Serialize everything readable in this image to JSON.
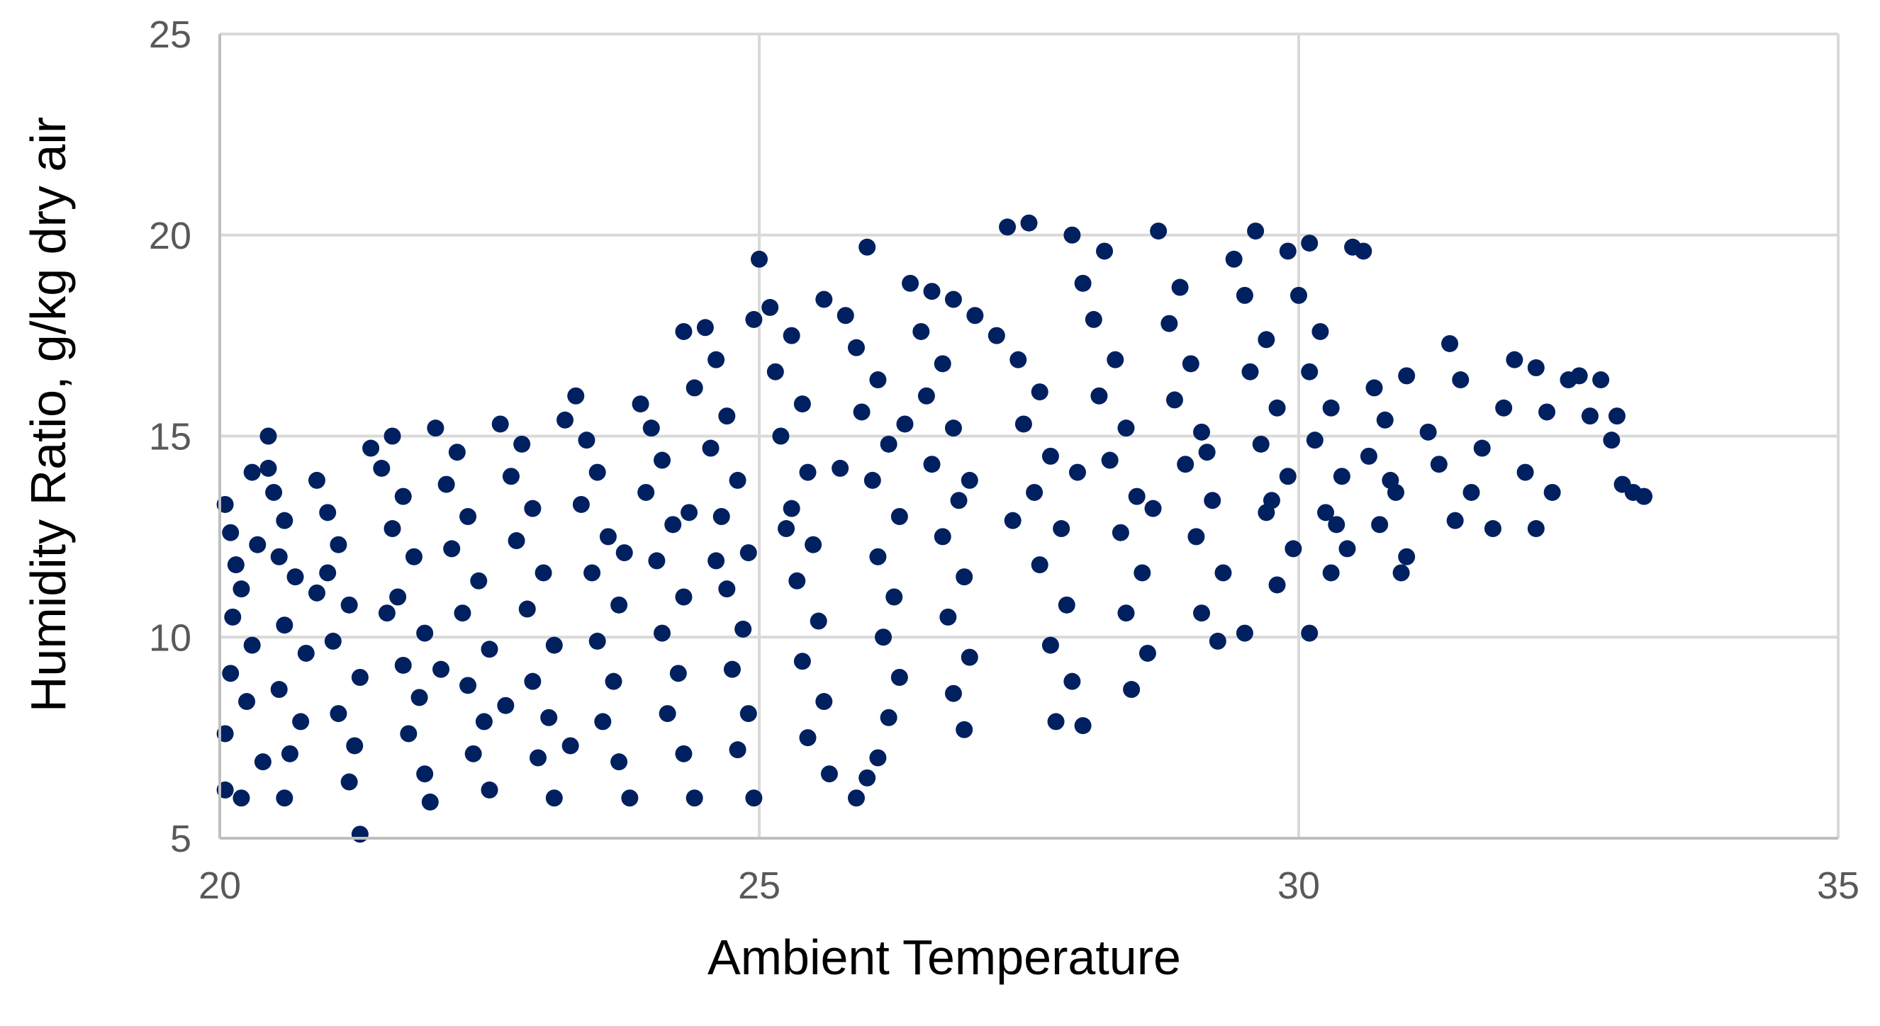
{
  "chart_data": {
    "type": "scatter",
    "title": "",
    "xlabel": "Ambient Temperature",
    "ylabel": "Humidity Ratio, g/kg dry air",
    "xlim": [
      20,
      35
    ],
    "ylim": [
      5,
      25
    ],
    "x_ticks": [
      20,
      25,
      30,
      35
    ],
    "y_ticks": [
      5,
      10,
      15,
      20,
      25
    ],
    "x_tick_labels": [
      "20",
      "25",
      "30",
      "35"
    ],
    "y_tick_labels": [
      "5",
      "10",
      "15",
      "20",
      "25"
    ],
    "grid": true,
    "legend": "none",
    "marker_color": "#002060",
    "gridline_color": "#d9d9d9",
    "series": [
      {
        "points": [
          [
            20.05,
            13.3
          ],
          [
            20.1,
            12.6
          ],
          [
            20.15,
            11.8
          ],
          [
            20.2,
            11.2
          ],
          [
            20.12,
            10.5
          ],
          [
            20.3,
            9.8
          ],
          [
            20.1,
            9.1
          ],
          [
            20.25,
            8.4
          ],
          [
            20.05,
            7.6
          ],
          [
            20.4,
            6.9
          ],
          [
            20.05,
            6.2
          ],
          [
            20.2,
            6.0
          ],
          [
            20.3,
            14.1
          ],
          [
            20.45,
            14.2
          ],
          [
            20.5,
            13.6
          ],
          [
            20.6,
            12.9
          ],
          [
            20.55,
            12.0
          ],
          [
            20.7,
            11.5
          ],
          [
            20.6,
            10.3
          ],
          [
            20.8,
            9.6
          ],
          [
            20.55,
            8.7
          ],
          [
            20.75,
            7.9
          ],
          [
            20.65,
            7.1
          ],
          [
            20.6,
            6.0
          ],
          [
            20.45,
            15.0
          ],
          [
            20.9,
            13.9
          ],
          [
            21.0,
            13.1
          ],
          [
            21.1,
            12.3
          ],
          [
            21.0,
            11.6
          ],
          [
            21.2,
            10.8
          ],
          [
            21.05,
            9.9
          ],
          [
            21.3,
            9.0
          ],
          [
            21.1,
            8.1
          ],
          [
            21.25,
            7.3
          ],
          [
            21.2,
            6.4
          ],
          [
            21.3,
            5.1
          ],
          [
            21.4,
            14.7
          ],
          [
            21.6,
            15.0
          ],
          [
            21.5,
            14.2
          ],
          [
            21.7,
            13.5
          ],
          [
            21.6,
            12.7
          ],
          [
            21.8,
            12.0
          ],
          [
            21.65,
            11.0
          ],
          [
            21.9,
            10.1
          ],
          [
            21.7,
            9.3
          ],
          [
            21.85,
            8.5
          ],
          [
            21.75,
            7.6
          ],
          [
            21.9,
            6.6
          ],
          [
            21.95,
            5.9
          ],
          [
            22.0,
            15.2
          ],
          [
            22.2,
            14.6
          ],
          [
            22.1,
            13.8
          ],
          [
            22.3,
            13.0
          ],
          [
            22.15,
            12.2
          ],
          [
            22.4,
            11.4
          ],
          [
            22.25,
            10.6
          ],
          [
            22.5,
            9.7
          ],
          [
            22.3,
            8.8
          ],
          [
            22.45,
            7.9
          ],
          [
            22.35,
            7.1
          ],
          [
            22.5,
            6.2
          ],
          [
            22.6,
            15.3
          ],
          [
            22.8,
            14.8
          ],
          [
            22.7,
            14.0
          ],
          [
            22.9,
            13.2
          ],
          [
            22.75,
            12.4
          ],
          [
            23.0,
            11.6
          ],
          [
            22.85,
            10.7
          ],
          [
            23.1,
            9.8
          ],
          [
            22.9,
            8.9
          ],
          [
            23.05,
            8.0
          ],
          [
            22.95,
            7.0
          ],
          [
            23.1,
            6.0
          ],
          [
            23.2,
            15.4
          ],
          [
            23.3,
            16.0
          ],
          [
            23.4,
            14.9
          ],
          [
            23.5,
            14.1
          ],
          [
            23.35,
            13.3
          ],
          [
            23.6,
            12.5
          ],
          [
            23.45,
            11.6
          ],
          [
            23.7,
            10.8
          ],
          [
            23.5,
            9.9
          ],
          [
            23.65,
            8.9
          ],
          [
            23.55,
            7.9
          ],
          [
            23.7,
            6.9
          ],
          [
            23.8,
            6.0
          ],
          [
            23.9,
            15.8
          ],
          [
            24.0,
            15.2
          ],
          [
            24.1,
            14.4
          ],
          [
            23.95,
            13.6
          ],
          [
            24.2,
            12.8
          ],
          [
            24.05,
            11.9
          ],
          [
            24.3,
            11.0
          ],
          [
            24.1,
            10.1
          ],
          [
            24.25,
            9.1
          ],
          [
            24.15,
            8.1
          ],
          [
            24.3,
            7.1
          ],
          [
            24.4,
            6.0
          ],
          [
            24.3,
            17.6
          ],
          [
            24.5,
            17.7
          ],
          [
            24.6,
            16.9
          ],
          [
            24.4,
            16.2
          ],
          [
            24.7,
            15.5
          ],
          [
            24.55,
            14.7
          ],
          [
            24.8,
            13.9
          ],
          [
            24.65,
            13.0
          ],
          [
            24.9,
            12.1
          ],
          [
            24.7,
            11.2
          ],
          [
            24.85,
            10.2
          ],
          [
            24.75,
            9.2
          ],
          [
            24.9,
            8.1
          ],
          [
            24.8,
            7.2
          ],
          [
            24.95,
            6.0
          ],
          [
            24.95,
            17.9
          ],
          [
            25.0,
            19.4
          ],
          [
            25.1,
            18.2
          ],
          [
            25.3,
            17.5
          ],
          [
            25.15,
            16.6
          ],
          [
            25.4,
            15.8
          ],
          [
            25.2,
            15.0
          ],
          [
            25.45,
            14.1
          ],
          [
            25.3,
            13.2
          ],
          [
            25.5,
            12.3
          ],
          [
            25.35,
            11.4
          ],
          [
            25.55,
            10.4
          ],
          [
            25.4,
            9.4
          ],
          [
            25.6,
            8.4
          ],
          [
            25.45,
            7.5
          ],
          [
            25.65,
            6.6
          ],
          [
            25.6,
            18.4
          ],
          [
            25.8,
            18.0
          ],
          [
            26.0,
            19.7
          ],
          [
            25.9,
            17.2
          ],
          [
            26.1,
            16.4
          ],
          [
            25.95,
            15.6
          ],
          [
            26.2,
            14.8
          ],
          [
            26.05,
            13.9
          ],
          [
            26.3,
            13.0
          ],
          [
            26.1,
            12.0
          ],
          [
            26.25,
            11.0
          ],
          [
            26.15,
            10.0
          ],
          [
            26.3,
            9.0
          ],
          [
            26.2,
            8.0
          ],
          [
            26.1,
            7.0
          ],
          [
            25.9,
            6.0
          ],
          [
            26.0,
            6.5
          ],
          [
            26.4,
            18.8
          ],
          [
            26.6,
            18.6
          ],
          [
            26.8,
            18.4
          ],
          [
            26.5,
            17.6
          ],
          [
            26.7,
            16.8
          ],
          [
            26.55,
            16.0
          ],
          [
            26.8,
            15.2
          ],
          [
            26.6,
            14.3
          ],
          [
            26.85,
            13.4
          ],
          [
            26.7,
            12.5
          ],
          [
            26.9,
            11.5
          ],
          [
            26.75,
            10.5
          ],
          [
            26.95,
            9.5
          ],
          [
            26.8,
            8.6
          ],
          [
            26.9,
            7.7
          ],
          [
            27.0,
            18.0
          ],
          [
            27.2,
            17.5
          ],
          [
            27.3,
            20.2
          ],
          [
            27.5,
            20.3
          ],
          [
            27.4,
            16.9
          ],
          [
            27.6,
            16.1
          ],
          [
            27.45,
            15.3
          ],
          [
            27.7,
            14.5
          ],
          [
            27.55,
            13.6
          ],
          [
            27.8,
            12.7
          ],
          [
            27.6,
            11.8
          ],
          [
            27.85,
            10.8
          ],
          [
            27.7,
            9.8
          ],
          [
            27.9,
            8.9
          ],
          [
            27.75,
            7.9
          ],
          [
            27.9,
            20.0
          ],
          [
            28.0,
            18.8
          ],
          [
            28.2,
            19.6
          ],
          [
            28.1,
            17.9
          ],
          [
            28.3,
            16.9
          ],
          [
            28.15,
            16.0
          ],
          [
            28.4,
            15.2
          ],
          [
            28.25,
            14.4
          ],
          [
            28.5,
            13.5
          ],
          [
            28.35,
            12.6
          ],
          [
            28.55,
            11.6
          ],
          [
            28.4,
            10.6
          ],
          [
            28.6,
            9.6
          ],
          [
            28.0,
            7.8
          ],
          [
            28.45,
            8.7
          ],
          [
            28.7,
            20.1
          ],
          [
            28.9,
            18.7
          ],
          [
            28.8,
            17.8
          ],
          [
            29.0,
            16.8
          ],
          [
            28.85,
            15.9
          ],
          [
            29.1,
            15.1
          ],
          [
            28.95,
            14.3
          ],
          [
            29.2,
            13.4
          ],
          [
            29.05,
            12.5
          ],
          [
            29.3,
            11.6
          ],
          [
            29.1,
            10.6
          ],
          [
            29.25,
            9.9
          ],
          [
            29.4,
            19.4
          ],
          [
            29.6,
            20.1
          ],
          [
            29.5,
            18.5
          ],
          [
            29.7,
            17.4
          ],
          [
            29.55,
            16.6
          ],
          [
            29.8,
            15.7
          ],
          [
            29.65,
            14.8
          ],
          [
            29.9,
            14.0
          ],
          [
            29.7,
            13.1
          ],
          [
            29.95,
            12.2
          ],
          [
            29.8,
            11.3
          ],
          [
            29.5,
            10.1
          ],
          [
            29.9,
            19.6
          ],
          [
            30.1,
            19.8
          ],
          [
            30.0,
            18.5
          ],
          [
            30.2,
            17.6
          ],
          [
            30.1,
            16.6
          ],
          [
            30.3,
            15.7
          ],
          [
            30.15,
            14.9
          ],
          [
            30.4,
            14.0
          ],
          [
            30.25,
            13.1
          ],
          [
            30.45,
            12.2
          ],
          [
            30.3,
            11.6
          ],
          [
            30.1,
            10.1
          ],
          [
            30.5,
            19.7
          ],
          [
            30.6,
            19.6
          ],
          [
            30.7,
            16.2
          ],
          [
            30.8,
            15.4
          ],
          [
            30.65,
            14.5
          ],
          [
            30.9,
            13.6
          ],
          [
            30.75,
            12.8
          ],
          [
            31.0,
            12.0
          ],
          [
            30.95,
            11.6
          ],
          [
            31.0,
            16.5
          ],
          [
            31.2,
            15.1
          ],
          [
            31.4,
            17.3
          ],
          [
            31.5,
            16.4
          ],
          [
            31.3,
            14.3
          ],
          [
            31.6,
            13.6
          ],
          [
            31.45,
            12.9
          ],
          [
            31.7,
            14.7
          ],
          [
            31.8,
            12.7
          ],
          [
            31.9,
            15.7
          ],
          [
            32.0,
            16.9
          ],
          [
            32.1,
            14.1
          ],
          [
            32.2,
            16.7
          ],
          [
            32.3,
            15.6
          ],
          [
            32.2,
            12.7
          ],
          [
            32.35,
            13.6
          ],
          [
            32.5,
            16.4
          ],
          [
            32.6,
            16.5
          ],
          [
            32.7,
            15.5
          ],
          [
            32.8,
            16.4
          ],
          [
            32.95,
            15.5
          ],
          [
            32.9,
            14.9
          ],
          [
            33.0,
            13.8
          ],
          [
            33.1,
            13.6
          ],
          [
            33.2,
            13.5
          ],
          [
            20.35,
            12.3
          ],
          [
            20.9,
            11.1
          ],
          [
            21.55,
            10.6
          ],
          [
            22.05,
            9.2
          ],
          [
            22.65,
            8.3
          ],
          [
            23.25,
            7.3
          ],
          [
            23.75,
            12.1
          ],
          [
            24.35,
            13.1
          ],
          [
            24.6,
            11.9
          ],
          [
            25.25,
            12.7
          ],
          [
            25.75,
            14.2
          ],
          [
            26.35,
            15.3
          ],
          [
            26.95,
            13.9
          ],
          [
            27.35,
            12.9
          ],
          [
            27.95,
            14.1
          ],
          [
            28.65,
            13.2
          ],
          [
            29.15,
            14.6
          ],
          [
            29.75,
            13.4
          ],
          [
            30.35,
            12.8
          ],
          [
            30.85,
            13.9
          ]
        ]
      }
    ]
  }
}
